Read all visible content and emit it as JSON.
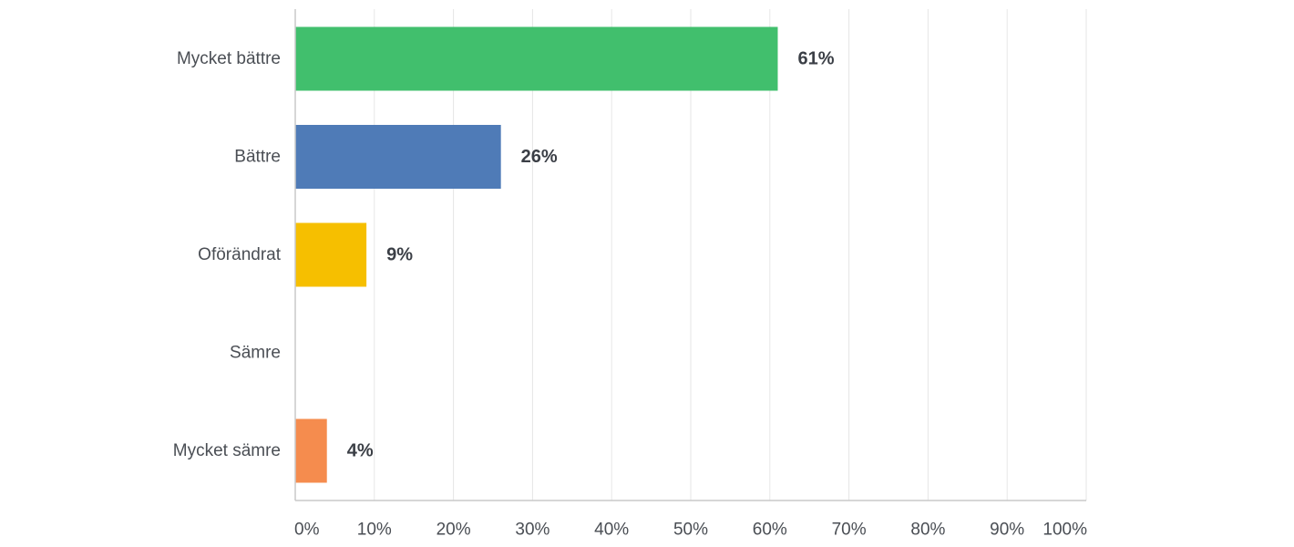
{
  "chart_data": {
    "type": "bar",
    "orientation": "horizontal",
    "categories": [
      "Mycket bättre",
      "Bättre",
      "Oförändrat",
      "Sämre",
      "Mycket sämre"
    ],
    "values": [
      61,
      26,
      9,
      0,
      4
    ],
    "value_labels": [
      "61%",
      "26%",
      "9%",
      "",
      "4%"
    ],
    "colors": [
      "#41bf6d",
      "#4f7bb7",
      "#f6bf00",
      "#f58c4e",
      "#f58c4e"
    ],
    "xlim": [
      0,
      100
    ],
    "x_ticks": [
      0,
      10,
      20,
      30,
      40,
      50,
      60,
      70,
      80,
      90,
      100
    ],
    "x_tick_labels": [
      "0%",
      "10%",
      "20%",
      "30%",
      "40%",
      "50%",
      "60%",
      "70%",
      "80%",
      "90%",
      "100%"
    ],
    "grid": true,
    "legend": "none",
    "title": "",
    "xlabel": "",
    "ylabel": ""
  }
}
